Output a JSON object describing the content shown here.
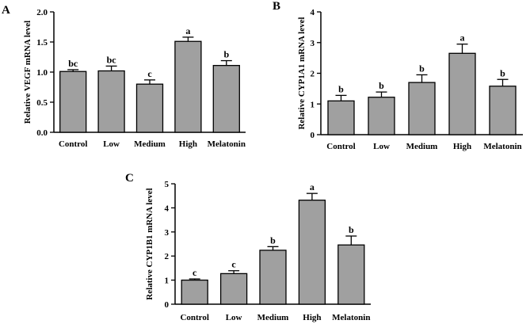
{
  "colors": {
    "bar": "#a0a0a0",
    "axis": "#000000"
  },
  "chart_data": [
    {
      "panel": "A",
      "type": "bar",
      "categories": [
        "Control",
        "Low",
        "Medium",
        "High",
        "Melatonin"
      ],
      "values": [
        1.01,
        1.02,
        0.8,
        1.51,
        1.11
      ],
      "errors": [
        0.03,
        0.08,
        0.07,
        0.07,
        0.08
      ],
      "significance": [
        "bc",
        "bc",
        "c",
        "a",
        "b"
      ],
      "ylabel": "Relative VEGF mRNA level",
      "ylim": [
        0,
        2.0
      ],
      "yticks": [
        "0.0",
        "0.5",
        "1.0",
        "1.5",
        "2.0"
      ],
      "ytick_values": [
        0,
        0.5,
        1.0,
        1.5,
        2.0
      ]
    },
    {
      "panel": "B",
      "type": "bar",
      "categories": [
        "Control",
        "Low",
        "Medium",
        "High",
        "Melatonin"
      ],
      "values": [
        1.1,
        1.22,
        1.7,
        2.65,
        1.58
      ],
      "errors": [
        0.18,
        0.17,
        0.25,
        0.3,
        0.22
      ],
      "significance": [
        "b",
        "b",
        "b",
        "a",
        "b"
      ],
      "ylabel": "Relative CYP1A1 mRNA level",
      "ylim": [
        0,
        4
      ],
      "yticks": [
        "0",
        "1",
        "2",
        "3",
        "4"
      ],
      "ytick_values": [
        0,
        1,
        2,
        3,
        4
      ]
    },
    {
      "panel": "C",
      "type": "bar",
      "categories": [
        "Control",
        "Low",
        "Medium",
        "High",
        "Melatonin"
      ],
      "values": [
        1.0,
        1.27,
        2.24,
        4.32,
        2.46
      ],
      "errors": [
        0.05,
        0.12,
        0.15,
        0.28,
        0.37
      ],
      "significance": [
        "c",
        "c",
        "b",
        "a",
        "b"
      ],
      "ylabel": "Relative CYP1B1 mRNA level",
      "ylim": [
        0,
        5
      ],
      "yticks": [
        "0",
        "1",
        "2",
        "3",
        "4",
        "5"
      ],
      "ytick_values": [
        0,
        1,
        2,
        3,
        4,
        5
      ]
    }
  ]
}
